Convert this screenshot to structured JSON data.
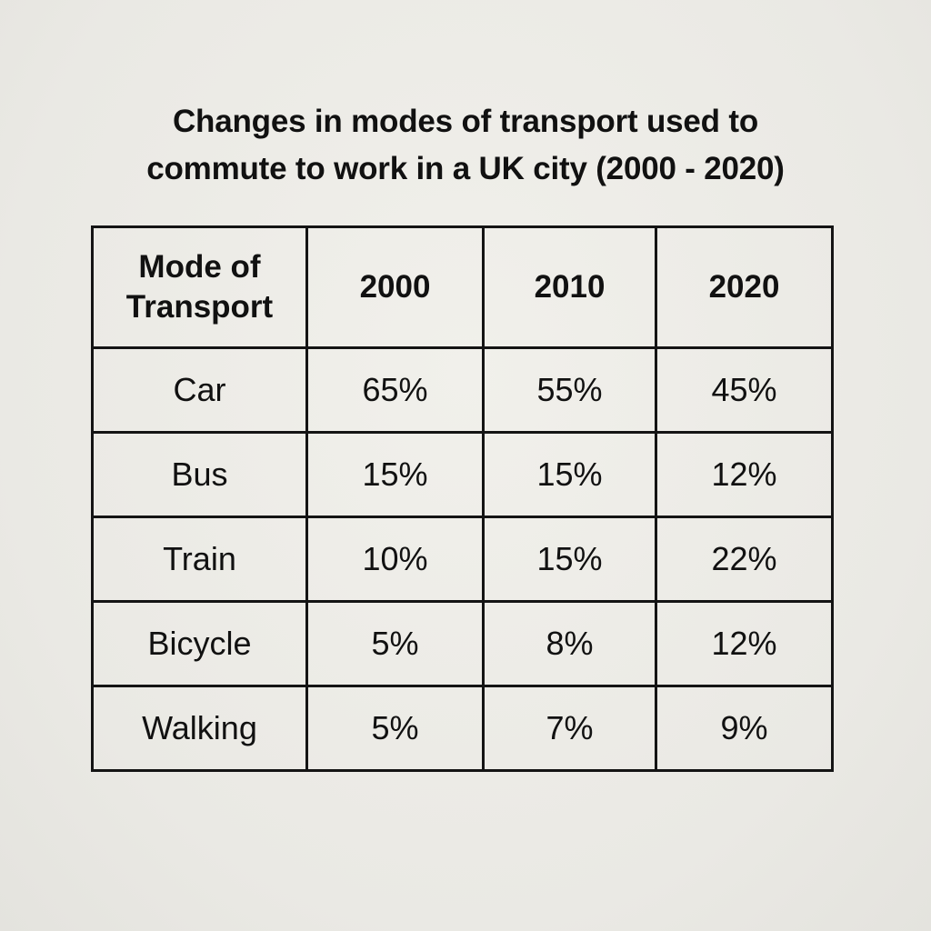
{
  "title_lines": [
    "Changes in modes of transport used to",
    "commute to work in a UK city (2000 - 2020)"
  ],
  "chart_data": {
    "type": "table",
    "title": "Changes in modes of transport used to commute to work in a UK city (2000 - 2020)",
    "columns": [
      "Mode of Transport",
      "2000",
      "2010",
      "2020"
    ],
    "header_first_lines": [
      "Mode of",
      "Transport"
    ],
    "rows": [
      [
        "Car",
        "65%",
        "55%",
        "45%"
      ],
      [
        "Bus",
        "15%",
        "15%",
        "12%"
      ],
      [
        "Train",
        "10%",
        "15%",
        "22%"
      ],
      [
        "Bicycle",
        "5%",
        "8%",
        "12%"
      ],
      [
        "Walking",
        "5%",
        "7%",
        "9%"
      ]
    ]
  }
}
